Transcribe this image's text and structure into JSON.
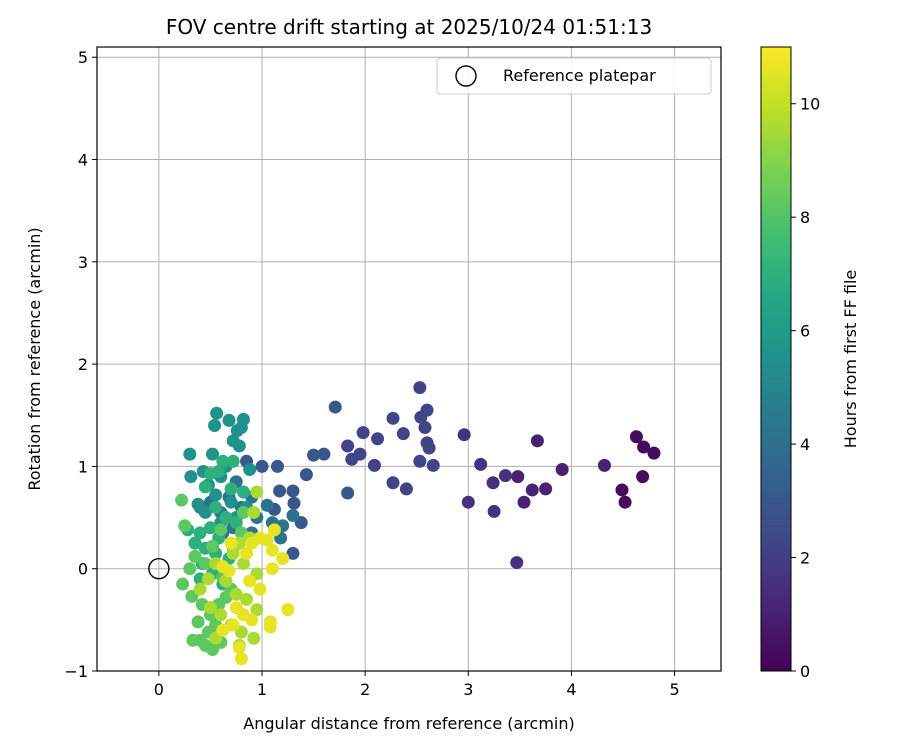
{
  "chart_data": {
    "type": "scatter",
    "title": "FOV centre drift starting at 2025/10/24 01:51:13",
    "xlabel": "Angular distance from reference (arcmin)",
    "ylabel": "Rotation from reference (arcmin)",
    "xlim": [
      -0.6,
      5.45
    ],
    "ylim": [
      -1,
      5.1
    ],
    "xticks": [
      0,
      1,
      2,
      3,
      4,
      5
    ],
    "yticks": [
      -1,
      0,
      1,
      2,
      3,
      4,
      5
    ],
    "grid": true,
    "legend": {
      "location": "top-right",
      "entries": [
        "Reference platepar"
      ]
    },
    "reference_point": {
      "x": 0,
      "y": 0,
      "label": "Reference platepar"
    },
    "colorbar": {
      "label": "Hours from first FF file",
      "colormap": "viridis",
      "range": [
        0,
        11
      ],
      "ticks": [
        0,
        2,
        4,
        6,
        8,
        10
      ]
    },
    "series": [
      {
        "hours": 0.3,
        "points": [
          [
            4.8,
            1.13
          ],
          [
            4.7,
            1.19
          ],
          [
            4.63,
            1.29
          ],
          [
            4.49,
            0.77
          ],
          [
            4.52,
            0.65
          ],
          [
            4.69,
            0.9
          ]
        ]
      },
      {
        "hours": 1.0,
        "points": [
          [
            4.32,
            1.01
          ],
          [
            3.91,
            0.97
          ],
          [
            3.75,
            0.78
          ],
          [
            3.62,
            0.77
          ],
          [
            3.67,
            1.25
          ],
          [
            3.54,
            0.65
          ],
          [
            3.48,
            0.9
          ]
        ]
      },
      {
        "hours": 1.6,
        "points": [
          [
            3.47,
            0.06
          ],
          [
            3.36,
            0.91
          ],
          [
            3.24,
            0.84
          ],
          [
            3.12,
            1.02
          ],
          [
            3.25,
            0.56
          ],
          [
            3.0,
            0.65
          ],
          [
            2.96,
            1.31
          ]
        ]
      },
      {
        "hours": 2.2,
        "points": [
          [
            2.53,
            1.77
          ],
          [
            2.6,
            1.55
          ],
          [
            2.54,
            1.48
          ],
          [
            2.58,
            1.38
          ],
          [
            2.6,
            1.23
          ],
          [
            2.62,
            1.18
          ],
          [
            2.66,
            1.01
          ],
          [
            2.53,
            1.05
          ],
          [
            2.4,
            0.78
          ],
          [
            2.37,
            1.32
          ],
          [
            2.27,
            0.84
          ],
          [
            2.27,
            1.47
          ],
          [
            2.12,
            1.27
          ],
          [
            2.09,
            1.01
          ],
          [
            1.98,
            1.33
          ],
          [
            1.95,
            1.12
          ],
          [
            1.87,
            1.07
          ],
          [
            1.83,
            1.2
          ]
        ]
      },
      {
        "hours": 3.0,
        "points": [
          [
            1.83,
            0.74
          ],
          [
            1.71,
            1.58
          ],
          [
            1.6,
            1.12
          ],
          [
            1.5,
            1.11
          ],
          [
            1.43,
            0.92
          ],
          [
            1.38,
            0.45
          ],
          [
            1.31,
            0.64
          ],
          [
            1.3,
            0.76
          ],
          [
            1.3,
            0.15
          ],
          [
            1.17,
            0.76
          ],
          [
            1.15,
            1.0
          ],
          [
            1.12,
            0.58
          ],
          [
            1.0,
            1.0
          ],
          [
            0.85,
            1.05
          ]
        ]
      },
      {
        "hours": 4.2,
        "points": [
          [
            1.3,
            0.52
          ],
          [
            1.2,
            0.42
          ],
          [
            1.1,
            0.45
          ],
          [
            1.18,
            0.3
          ],
          [
            1.05,
            0.62
          ],
          [
            0.95,
            0.5
          ],
          [
            0.9,
            0.7
          ],
          [
            0.75,
            0.85
          ],
          [
            0.8,
            0.6
          ],
          [
            0.68,
            0.7
          ],
          [
            0.72,
            0.4
          ],
          [
            0.6,
            0.55
          ],
          [
            0.5,
            0.65
          ],
          [
            0.4,
            0.6
          ],
          [
            0.62,
            0.35
          ],
          [
            0.9,
            0.35
          ]
        ]
      },
      {
        "hours": 5.5,
        "points": [
          [
            0.3,
            1.12
          ],
          [
            0.31,
            0.9
          ],
          [
            0.43,
            0.95
          ],
          [
            0.52,
            1.12
          ],
          [
            0.56,
            1.52
          ],
          [
            0.54,
            1.4
          ],
          [
            0.68,
            1.45
          ],
          [
            0.82,
            1.46
          ],
          [
            0.8,
            1.38
          ],
          [
            0.76,
            1.35
          ],
          [
            0.72,
            1.25
          ],
          [
            0.78,
            1.2
          ],
          [
            0.88,
            0.97
          ],
          [
            0.65,
            1.0
          ],
          [
            0.6,
            0.9
          ],
          [
            0.48,
            0.82
          ],
          [
            0.55,
            0.72
          ],
          [
            0.7,
            0.65
          ],
          [
            0.85,
            0.6
          ],
          [
            0.45,
            0.55
          ],
          [
            0.75,
            0.5
          ],
          [
            0.6,
            0.45
          ],
          [
            0.38,
            0.63
          ]
        ]
      },
      {
        "hours": 7.0,
        "points": [
          [
            0.5,
            0.93
          ],
          [
            0.58,
            0.95
          ],
          [
            0.72,
            1.05
          ],
          [
            0.62,
            1.05
          ],
          [
            0.45,
            0.8
          ],
          [
            0.7,
            0.78
          ],
          [
            0.82,
            0.75
          ],
          [
            0.55,
            0.6
          ],
          [
            0.65,
            0.5
          ],
          [
            0.5,
            0.4
          ],
          [
            0.4,
            0.35
          ],
          [
            0.28,
            0.38
          ],
          [
            0.75,
            0.45
          ],
          [
            0.58,
            0.3
          ],
          [
            0.45,
            0.2
          ],
          [
            0.35,
            0.25
          ],
          [
            0.55,
            0.15
          ],
          [
            0.68,
            0.1
          ],
          [
            0.42,
            0.05
          ],
          [
            0.52,
            -0.05
          ],
          [
            0.62,
            -0.15
          ],
          [
            0.4,
            -0.1
          ]
        ]
      },
      {
        "hours": 8.2,
        "points": [
          [
            0.25,
            0.42
          ],
          [
            0.22,
            0.67
          ],
          [
            0.23,
            -0.15
          ],
          [
            0.32,
            -0.27
          ],
          [
            0.42,
            -0.35
          ],
          [
            0.5,
            -0.45
          ],
          [
            0.55,
            -0.55
          ],
          [
            0.48,
            -0.62
          ],
          [
            0.4,
            -0.7
          ],
          [
            0.33,
            -0.7
          ],
          [
            0.45,
            -0.75
          ],
          [
            0.52,
            -0.79
          ],
          [
            0.6,
            -0.72
          ],
          [
            0.38,
            -0.52
          ],
          [
            0.58,
            -0.35
          ],
          [
            0.65,
            -0.28
          ],
          [
            0.45,
            0.05
          ],
          [
            0.52,
            0.22
          ],
          [
            0.6,
            0.38
          ],
          [
            0.72,
            0.2
          ],
          [
            0.82,
            0.55
          ],
          [
            0.8,
            0.35
          ],
          [
            0.35,
            0.12
          ],
          [
            0.3,
            0.0
          ],
          [
            0.62,
            -0.08
          ],
          [
            0.7,
            -0.2
          ]
        ]
      },
      {
        "hours": 9.6,
        "points": [
          [
            0.92,
            0.55
          ],
          [
            0.95,
            0.75
          ],
          [
            0.78,
            0.25
          ],
          [
            0.88,
            0.3
          ],
          [
            0.72,
            0.15
          ],
          [
            0.82,
            0.05
          ],
          [
            0.95,
            -0.05
          ],
          [
            0.65,
            -0.12
          ],
          [
            0.75,
            -0.25
          ],
          [
            0.85,
            -0.3
          ],
          [
            0.95,
            -0.4
          ],
          [
            0.6,
            -0.45
          ],
          [
            0.7,
            -0.55
          ],
          [
            0.8,
            -0.62
          ],
          [
            0.92,
            -0.68
          ],
          [
            0.78,
            -0.75
          ],
          [
            0.55,
            -0.68
          ],
          [
            0.5,
            -0.38
          ],
          [
            0.4,
            -0.2
          ],
          [
            0.48,
            -0.1
          ],
          [
            0.55,
            0.05
          ]
        ]
      },
      {
        "hours": 10.6,
        "points": [
          [
            1.12,
            0.38
          ],
          [
            1.2,
            0.1
          ],
          [
            1.1,
            0.18
          ],
          [
            1.05,
            0.28
          ],
          [
            0.98,
            0.3
          ],
          [
            0.9,
            0.25
          ],
          [
            0.85,
            0.15
          ],
          [
            1.1,
            0.0
          ],
          [
            1.25,
            -0.4
          ],
          [
            1.08,
            -0.52
          ],
          [
            1.08,
            -0.57
          ],
          [
            0.78,
            -0.77
          ],
          [
            0.8,
            -0.88
          ],
          [
            0.62,
            -0.6
          ],
          [
            0.72,
            -0.55
          ],
          [
            0.9,
            -0.5
          ],
          [
            0.98,
            -0.2
          ],
          [
            0.7,
            0.25
          ],
          [
            0.62,
            0.02
          ],
          [
            0.75,
            -0.38
          ],
          [
            0.88,
            -0.12
          ],
          [
            0.68,
            -0.02
          ],
          [
            0.82,
            -0.45
          ]
        ]
      }
    ]
  }
}
